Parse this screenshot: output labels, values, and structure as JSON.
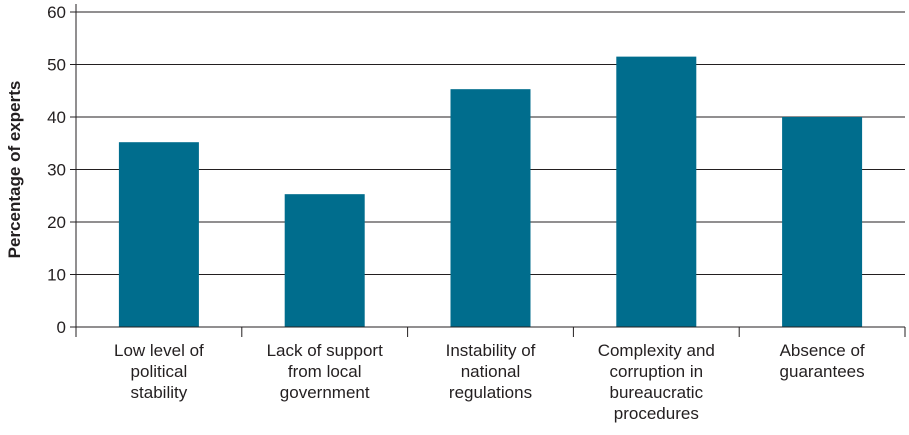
{
  "chart_data": {
    "type": "bar",
    "categories": [
      [
        "Low level of",
        "political",
        "stability"
      ],
      [
        "Lack of support",
        "from local",
        "government"
      ],
      [
        "Instability of",
        "national",
        "regulations"
      ],
      [
        "Complexity and",
        "corruption in",
        "bureaucratic",
        "procedures"
      ],
      [
        "Absence of",
        "guarantees"
      ]
    ],
    "values": [
      35.2,
      25.3,
      45.3,
      51.5,
      40.0
    ],
    "title": "",
    "xlabel": "",
    "ylabel": "Percentage of experts",
    "ylim": [
      0,
      60
    ],
    "yticks": [
      0,
      10,
      20,
      30,
      40,
      50,
      60
    ],
    "grid": true,
    "legend": "none",
    "colors": {
      "bar": "#006d8d",
      "grid": "#231f20",
      "axis": "#231f20"
    }
  }
}
